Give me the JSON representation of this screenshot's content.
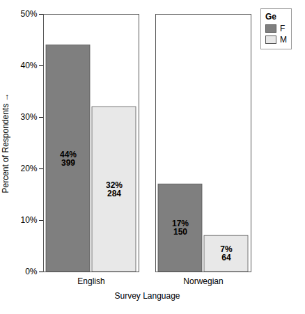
{
  "chart_data": {
    "type": "bar",
    "categories": [
      "English",
      "Norwegian"
    ],
    "series": [
      {
        "name": "F",
        "color": "#7f7f7f",
        "values": [
          44,
          17
        ],
        "value_labels": [
          "44%",
          "17%"
        ],
        "counts": [
          399,
          150
        ]
      },
      {
        "name": "M",
        "color": "#e8e8e8",
        "values": [
          32,
          7
        ],
        "value_labels": [
          "32%",
          "7%"
        ],
        "counts": [
          284,
          64
        ]
      }
    ],
    "xlabel": "Survey Language",
    "ylabel": "Percent of Respondents",
    "ylim": [
      0,
      50
    ],
    "yticks": [
      {
        "value": 0,
        "label": "0%"
      },
      {
        "value": 10,
        "label": "10%"
      },
      {
        "value": 20,
        "label": "20%"
      },
      {
        "value": 30,
        "label": "30%"
      },
      {
        "value": 40,
        "label": "40%"
      },
      {
        "value": 50,
        "label": "50%"
      }
    ],
    "legend": "right",
    "legend_title": "Ge",
    "data_labels": true,
    "grid": false
  }
}
